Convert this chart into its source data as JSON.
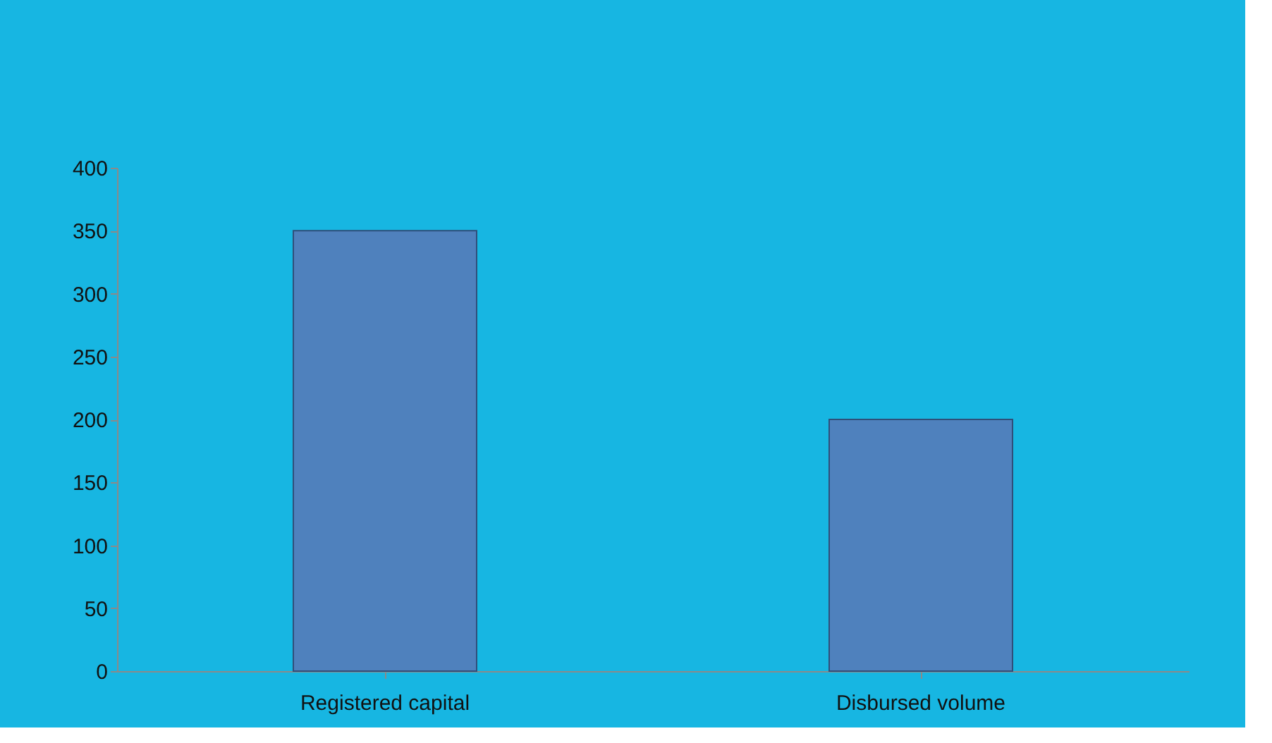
{
  "chart_data": {
    "type": "bar",
    "categories": [
      "Registered capital",
      "Disbursed volume"
    ],
    "values": [
      350,
      200
    ],
    "color": "#4f81bd",
    "ylim": [
      0,
      400
    ],
    "yticks": [
      0,
      50,
      100,
      150,
      200,
      250,
      300,
      350,
      400
    ],
    "grid": false
  }
}
